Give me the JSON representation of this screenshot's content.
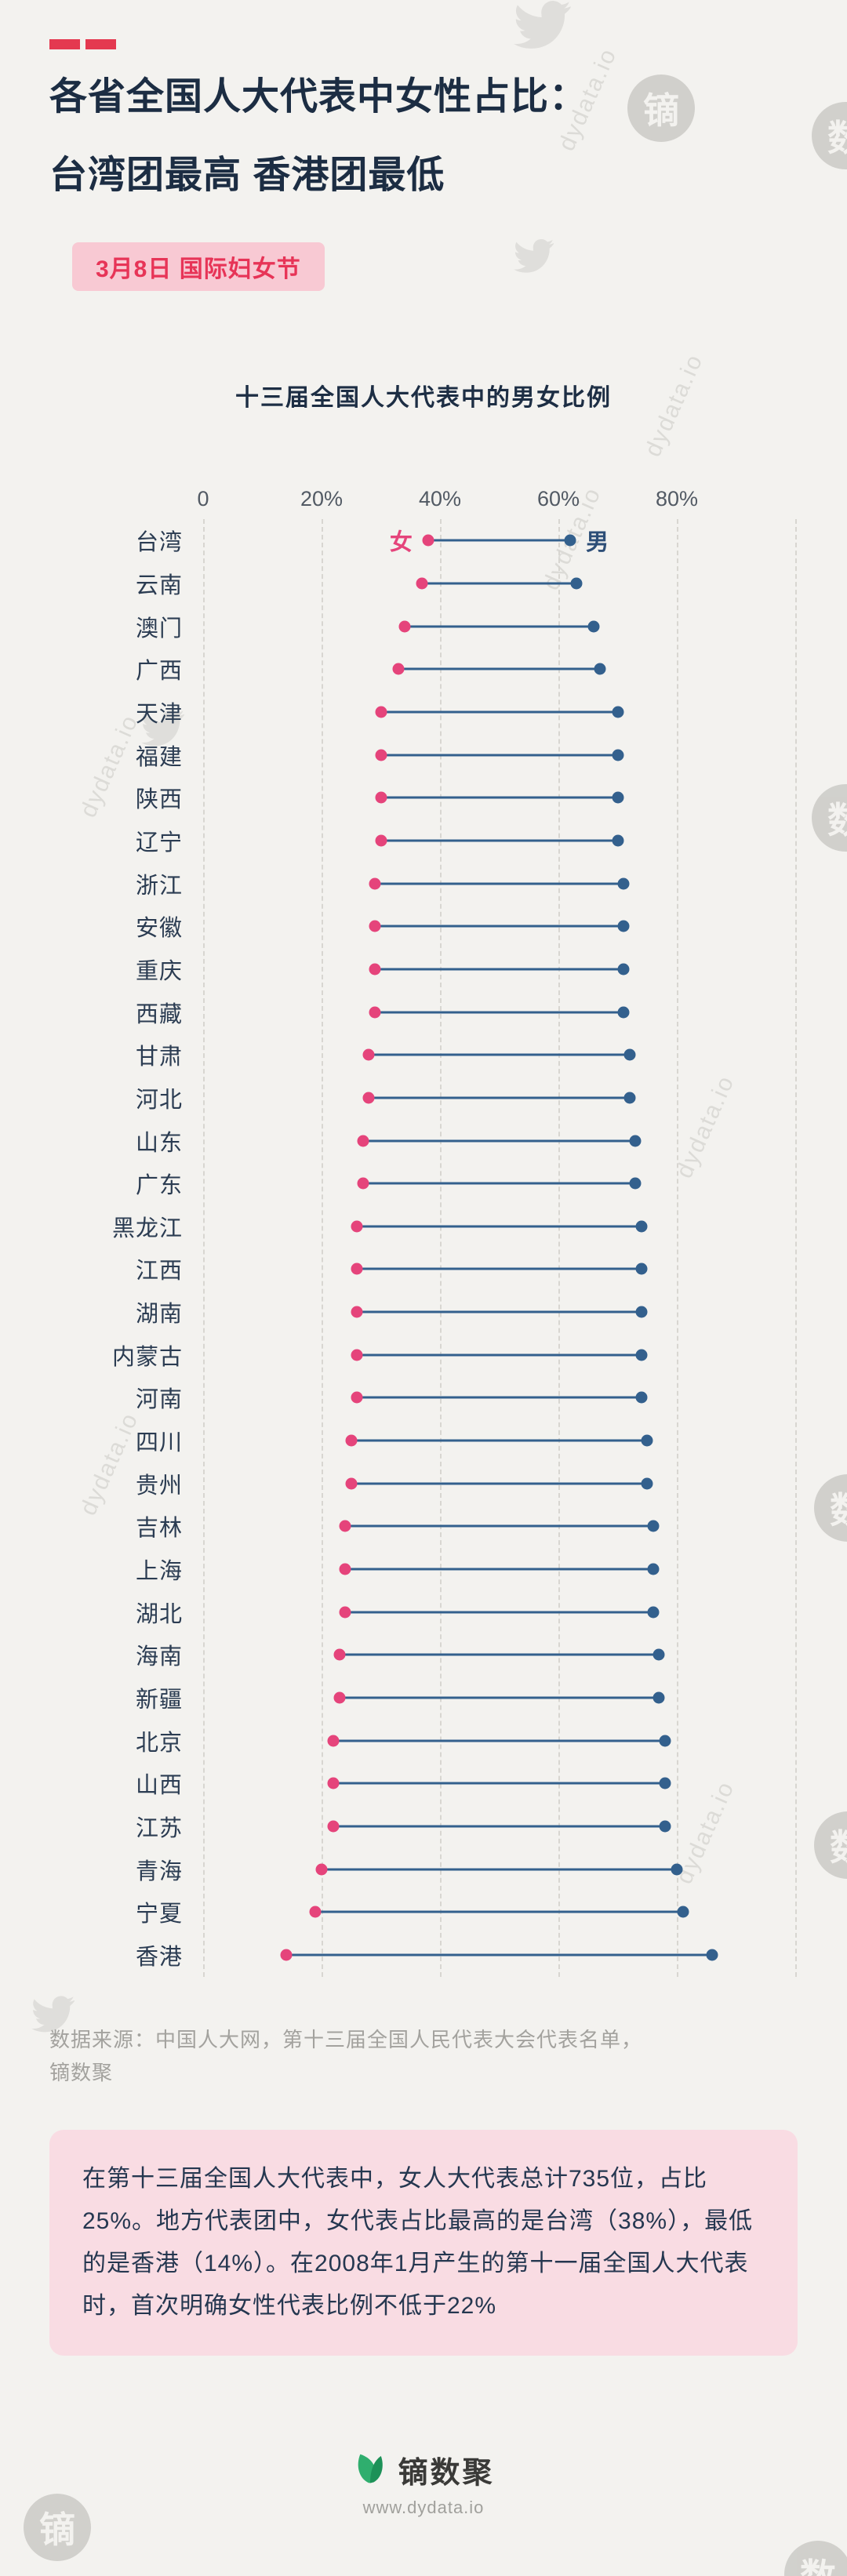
{
  "page": {
    "title_line1": "各省全国人大代表中女性占比：",
    "title_line2": "台湾团最高 香港团最低",
    "badge": "3月8日 国际妇女节",
    "source_line1": "数据来源：中国人大网，第十三届全国人民代表大会代表名单，",
    "source_line2": "镝数聚",
    "info_text": "在第十三届全国人大代表中，女人大代表总计735位，占比25%。地方代表团中，女代表占比最高的是台湾（38%），最低的是香港（14%）。在2008年1月产生的第十一届全国人大代表时，首次明确女性代表比例不低于22%",
    "footer_brand": "镝数聚",
    "footer_url": "www.dydata.io",
    "watermark_text": "dydata.io",
    "stamp_char_di": "镝",
    "stamp_char_shu": "数"
  },
  "colors": {
    "background": "#f3f2ef",
    "accent_red": "#e43950",
    "title_navy": "#1c2d43",
    "badge_bg": "#f8c9d3",
    "badge_text": "#e73457",
    "female_pink": "#e5447b",
    "male_blue": "#33608d",
    "info_box_bg": "#f9dce3",
    "source_gray": "#a3a29e"
  },
  "chart_data": {
    "type": "dumbbell",
    "title": "十三届全国人大代表中的男女比例",
    "xlabel": "",
    "ylabel": "",
    "unit": "%",
    "xlim": [
      0,
      100
    ],
    "x_ticks": [
      "0",
      "20%",
      "40%",
      "60%",
      "80%"
    ],
    "x_tick_values": [
      0,
      20,
      40,
      60,
      80
    ],
    "x_grid": [
      0,
      20,
      40,
      60,
      80,
      100
    ],
    "grid": "dashed-vertical",
    "legend": {
      "female": "女",
      "male": "男"
    },
    "series_names": [
      "女",
      "男"
    ],
    "rows": [
      {
        "province": "台湾",
        "female": 38,
        "male": 62
      },
      {
        "province": "云南",
        "female": 37,
        "male": 63
      },
      {
        "province": "澳门",
        "female": 34,
        "male": 66
      },
      {
        "province": "广西",
        "female": 33,
        "male": 67
      },
      {
        "province": "天津",
        "female": 30,
        "male": 70
      },
      {
        "province": "福建",
        "female": 30,
        "male": 70
      },
      {
        "province": "陕西",
        "female": 30,
        "male": 70
      },
      {
        "province": "辽宁",
        "female": 30,
        "male": 70
      },
      {
        "province": "浙江",
        "female": 29,
        "male": 71
      },
      {
        "province": "安徽",
        "female": 29,
        "male": 71
      },
      {
        "province": "重庆",
        "female": 29,
        "male": 71
      },
      {
        "province": "西藏",
        "female": 29,
        "male": 71
      },
      {
        "province": "甘肃",
        "female": 28,
        "male": 72
      },
      {
        "province": "河北",
        "female": 28,
        "male": 72
      },
      {
        "province": "山东",
        "female": 27,
        "male": 73
      },
      {
        "province": "广东",
        "female": 27,
        "male": 73
      },
      {
        "province": "黑龙江",
        "female": 26,
        "male": 74
      },
      {
        "province": "江西",
        "female": 26,
        "male": 74
      },
      {
        "province": "湖南",
        "female": 26,
        "male": 74
      },
      {
        "province": "内蒙古",
        "female": 26,
        "male": 74
      },
      {
        "province": "河南",
        "female": 26,
        "male": 74
      },
      {
        "province": "四川",
        "female": 25,
        "male": 75
      },
      {
        "province": "贵州",
        "female": 25,
        "male": 75
      },
      {
        "province": "吉林",
        "female": 24,
        "male": 76
      },
      {
        "province": "上海",
        "female": 24,
        "male": 76
      },
      {
        "province": "湖北",
        "female": 24,
        "male": 76
      },
      {
        "province": "海南",
        "female": 23,
        "male": 77
      },
      {
        "province": "新疆",
        "female": 23,
        "male": 77
      },
      {
        "province": "北京",
        "female": 22,
        "male": 78
      },
      {
        "province": "山西",
        "female": 22,
        "male": 78
      },
      {
        "province": "江苏",
        "female": 22,
        "male": 78
      },
      {
        "province": "青海",
        "female": 20,
        "male": 80
      },
      {
        "province": "宁夏",
        "female": 19,
        "male": 81
      },
      {
        "province": "香港",
        "female": 14,
        "male": 86
      }
    ]
  }
}
